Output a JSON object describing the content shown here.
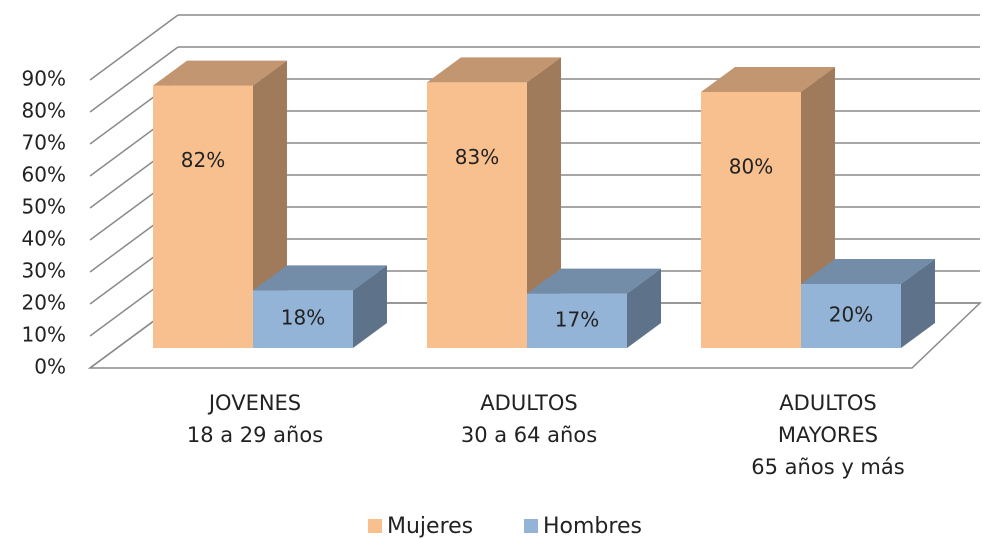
{
  "chart_data": {
    "type": "bar3d",
    "categories": [
      [
        "JOVENES",
        "18 a 29 años"
      ],
      [
        "ADULTOS",
        "30 a 64 años"
      ],
      [
        "ADULTOS",
        "MAYORES",
        "65 años y más"
      ]
    ],
    "series": [
      {
        "name": "Mujeres",
        "color": "#f9c08f",
        "values": [
          82,
          83,
          80
        ],
        "value_labels": [
          "82%",
          "83%",
          "80%"
        ]
      },
      {
        "name": "Hombres",
        "color": "#93b3d7",
        "values": [
          18,
          17,
          20
        ],
        "value_labels": [
          "18%",
          "17%",
          "20%"
        ]
      }
    ],
    "ylim": [
      0,
      90
    ],
    "yticks": [
      {
        "value": 0,
        "label": "0%"
      },
      {
        "value": 10,
        "label": "10%"
      },
      {
        "value": 20,
        "label": "20%"
      },
      {
        "value": 30,
        "label": "30%"
      },
      {
        "value": 40,
        "label": "40%"
      },
      {
        "value": 50,
        "label": "50%"
      },
      {
        "value": 60,
        "label": "60%"
      },
      {
        "value": 70,
        "label": "70%"
      },
      {
        "value": 80,
        "label": "80%"
      },
      {
        "value": 90,
        "label": "90%"
      }
    ],
    "grid": true,
    "legend": "bottom"
  }
}
